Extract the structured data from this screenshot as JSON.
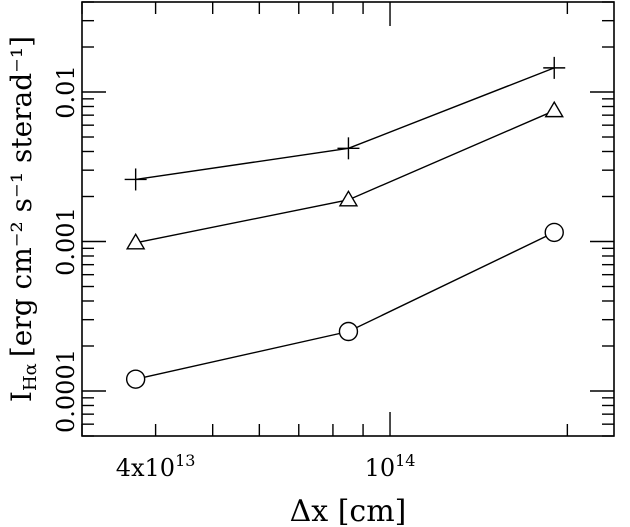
{
  "chart_data": {
    "type": "line",
    "xlabel": "Δx [cm]",
    "ylabel": "I",
    "ylabel_sub": "Hα",
    "ylabel_unit": "[erg cm⁻² s⁻¹ sterad⁻¹]",
    "x_scale": "log",
    "y_scale": "log",
    "xlim": [
      30000000000000,
      240000000000000
    ],
    "ylim": [
      5e-05,
      0.04
    ],
    "x_tick_labels": [
      {
        "value": 40000000000000,
        "mantissa": "4x10",
        "exponent": "13"
      },
      {
        "value": 100000000000000,
        "mantissa": "10",
        "exponent": "14"
      }
    ],
    "y_tick_labels": [
      {
        "value": 0.0001,
        "label": "0.0001"
      },
      {
        "value": 0.001,
        "label": "0.001"
      },
      {
        "value": 0.01,
        "label": "0.01"
      }
    ],
    "grid": false,
    "legend": "none",
    "series": [
      {
        "marker": "plus",
        "x": [
          37000000000000,
          85000000000000,
          190000000000000
        ],
        "y": [
          0.0026,
          0.0042,
          0.0145
        ]
      },
      {
        "marker": "triangle",
        "x": [
          37000000000000,
          85000000000000,
          190000000000000
        ],
        "y": [
          0.00098,
          0.0019,
          0.0075
        ]
      },
      {
        "marker": "circle",
        "x": [
          37000000000000,
          85000000000000,
          190000000000000
        ],
        "y": [
          0.00012,
          0.00025,
          0.00115
        ]
      }
    ],
    "colors": {
      "line": "#000000",
      "background": "#ffffff"
    }
  }
}
